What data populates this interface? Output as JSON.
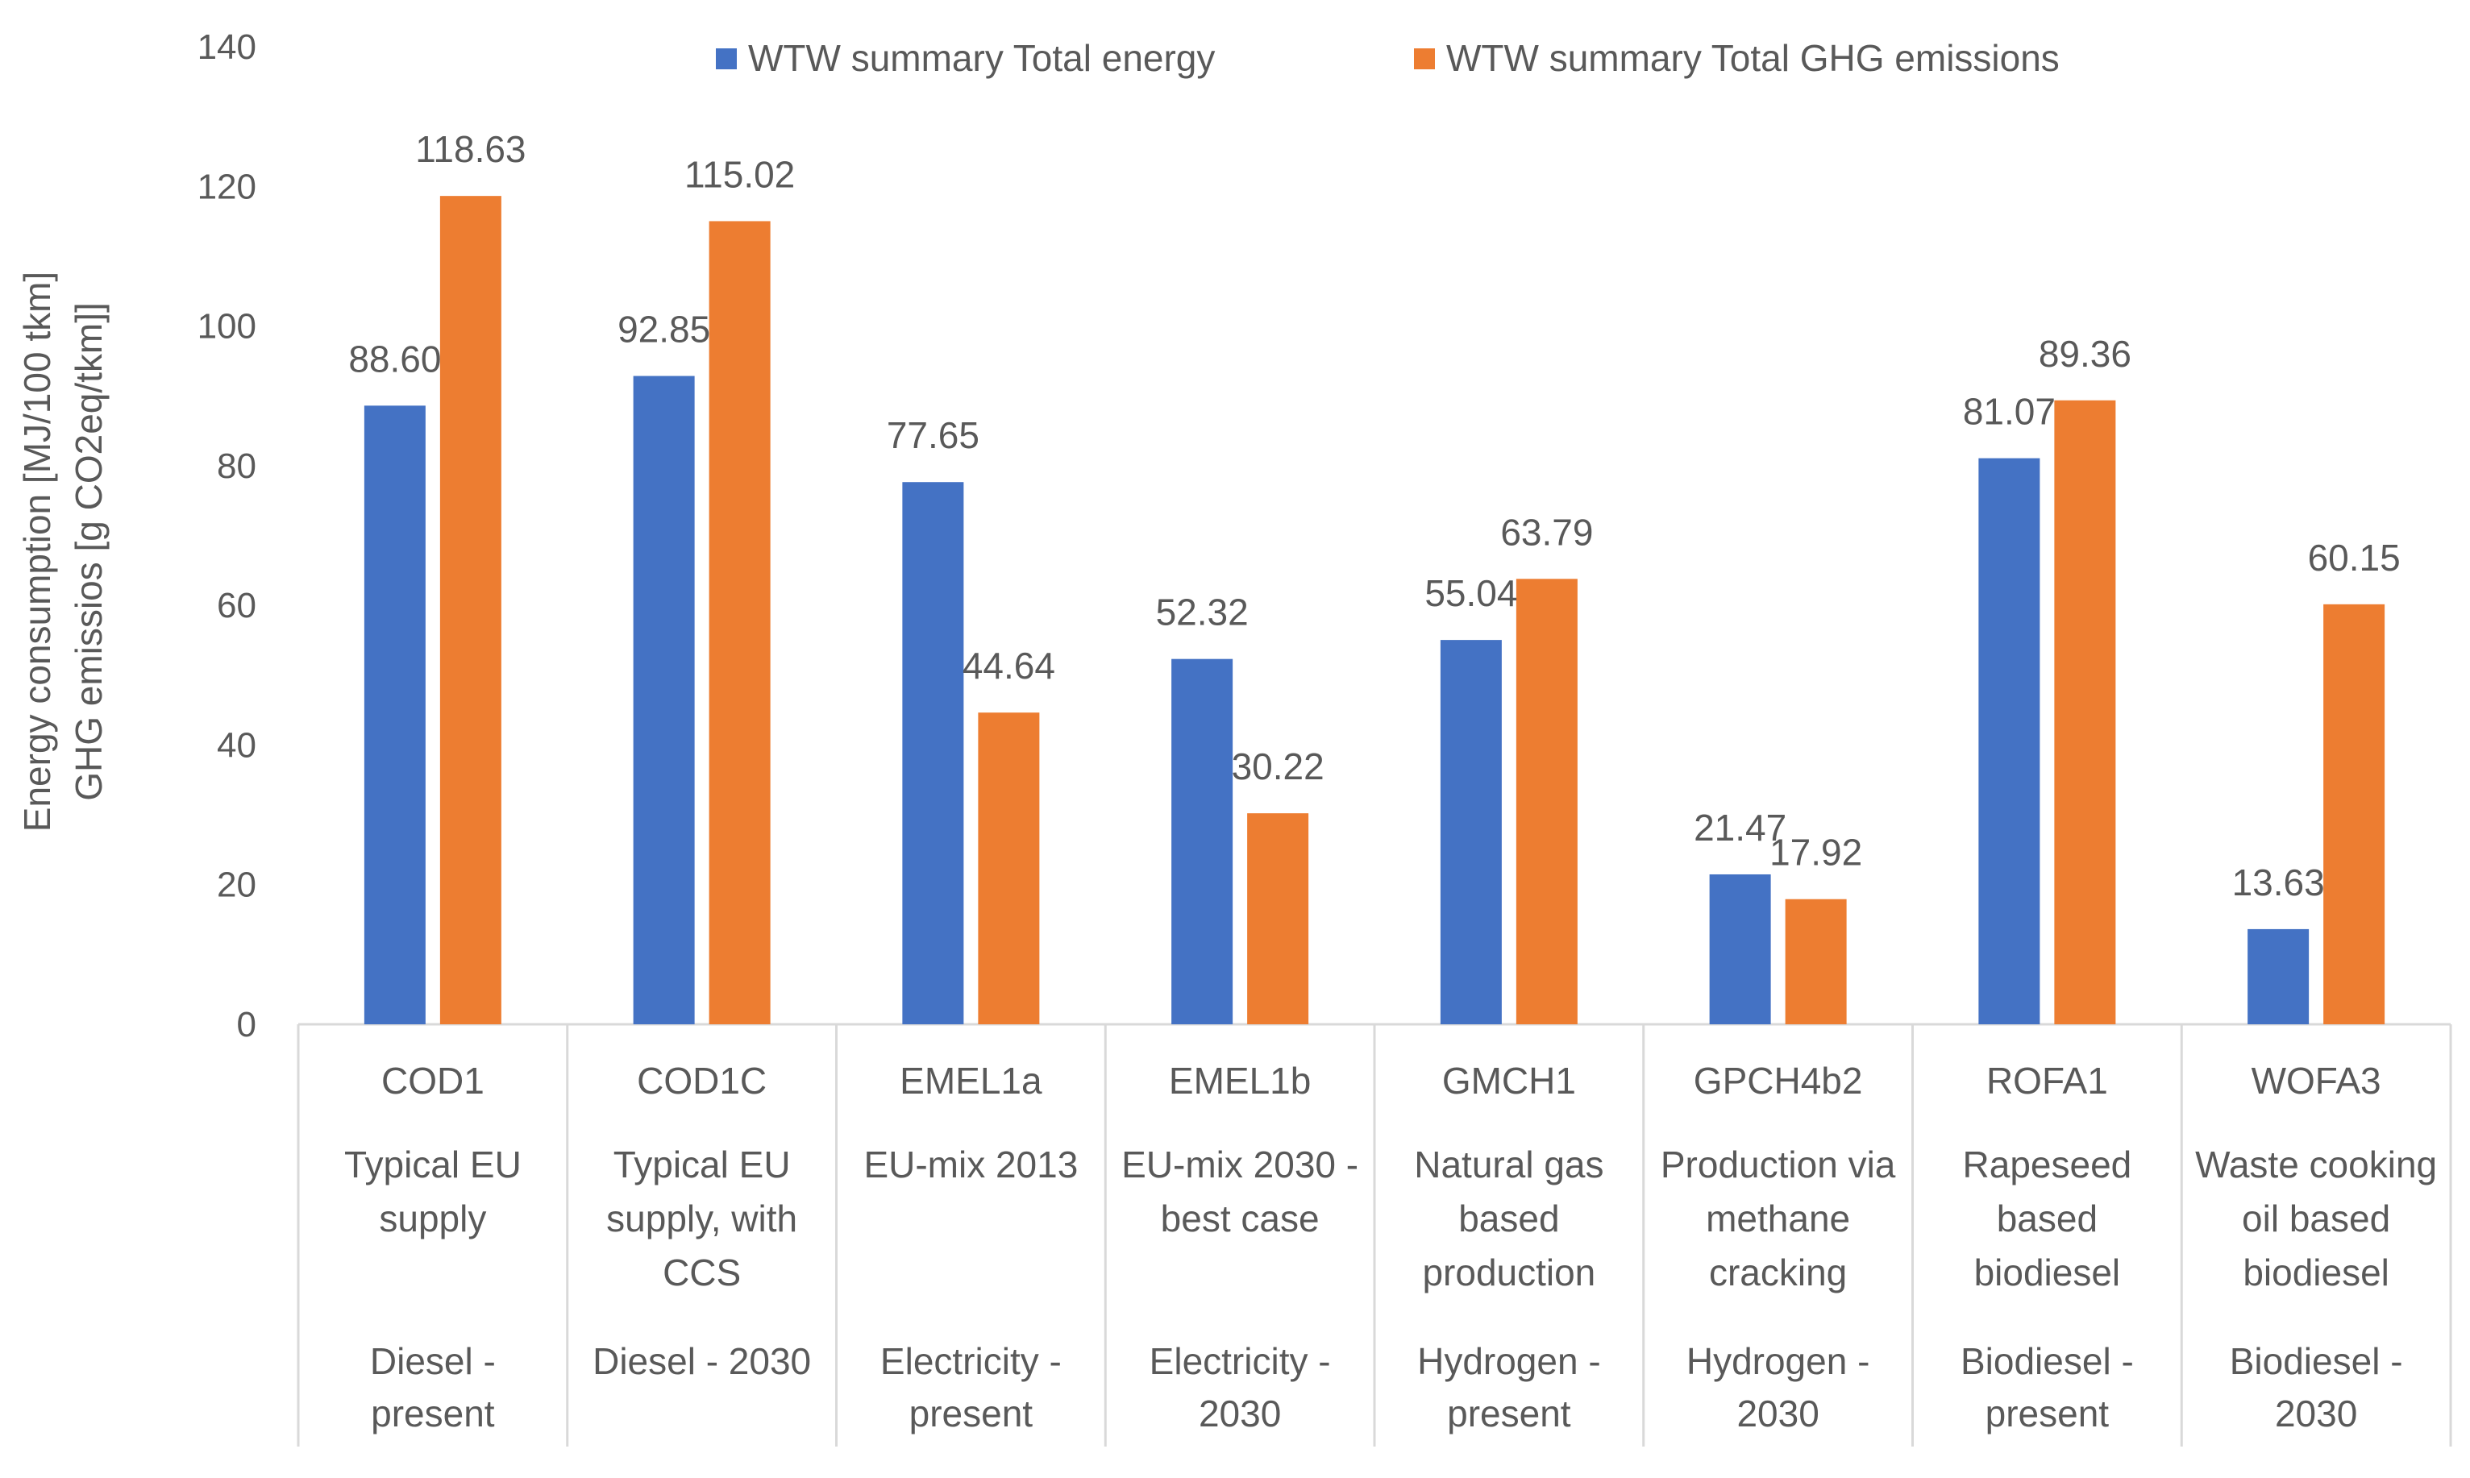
{
  "chart_data": {
    "type": "bar",
    "title": "",
    "ylabel": [
      "Energy consumption [MJ/100 tkm]",
      "GHG emissios [g CO2eq/tkm]]"
    ],
    "xlabel": "",
    "ylim": [
      0,
      140
    ],
    "yticks": [
      0,
      20,
      40,
      60,
      80,
      100,
      120,
      140
    ],
    "grid": false,
    "legend_position": "top",
    "categories": [
      {
        "code": "COD1",
        "description": [
          "Typical EU",
          "supply"
        ],
        "fuel": [
          "Diesel -",
          "present"
        ]
      },
      {
        "code": "COD1C",
        "description": [
          "Typical EU",
          "supply, with",
          "CCS"
        ],
        "fuel": [
          "Diesel - 2030"
        ]
      },
      {
        "code": "EMEL1a",
        "description": [
          "EU-mix 2013"
        ],
        "fuel": [
          "Electricity -",
          "present"
        ]
      },
      {
        "code": "EMEL1b",
        "description": [
          "EU-mix 2030 -",
          "best case"
        ],
        "fuel": [
          "Electricity -",
          "2030"
        ]
      },
      {
        "code": "GMCH1",
        "description": [
          "Natural gas",
          "based",
          "production"
        ],
        "fuel": [
          "Hydrogen -",
          "present"
        ]
      },
      {
        "code": "GPCH4b2",
        "description": [
          "Production via",
          "methane",
          "cracking"
        ],
        "fuel": [
          "Hydrogen -",
          "2030"
        ]
      },
      {
        "code": "ROFA1",
        "description": [
          "Rapeseed",
          "based",
          "biodiesel"
        ],
        "fuel": [
          "Biodiesel -",
          "present"
        ]
      },
      {
        "code": "WOFA3",
        "description": [
          "Waste cooking",
          "oil based",
          "biodiesel"
        ],
        "fuel": [
          "Biodiesel -",
          "2030"
        ]
      }
    ],
    "series": [
      {
        "name": "WTW summary Total energy",
        "color": "#4472C4",
        "values": [
          88.6,
          92.85,
          77.65,
          52.32,
          55.04,
          21.47,
          81.07,
          13.63
        ],
        "labels": [
          "88.60",
          "92.85",
          "77.65",
          "52.32",
          "55.04",
          "21.47",
          "81.07",
          "13.63"
        ]
      },
      {
        "name": "WTW summary Total GHG emissions",
        "color": "#ED7D31",
        "values": [
          118.63,
          115.02,
          44.64,
          30.22,
          63.79,
          17.92,
          89.36,
          60.15
        ],
        "labels": [
          "118.63",
          "115.02",
          "44.64",
          "30.22",
          "63.79",
          "17.92",
          "89.36",
          "60.15"
        ]
      }
    ]
  }
}
